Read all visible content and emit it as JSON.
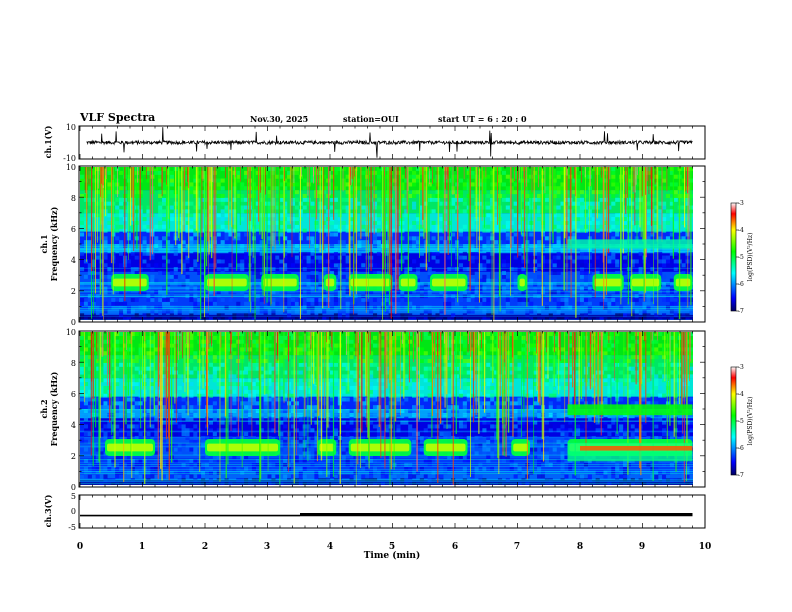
{
  "header": {
    "title": "VLF Spectra",
    "date": "Nov.30, 2025",
    "station": "station=OUI",
    "start_ut": "start  UT  =   6  : 20 : 0"
  },
  "chart_data": [
    {
      "type": "line",
      "panel": "ch1-waveform",
      "ylabel": "ch.1(V)",
      "ylim": [
        -10,
        10
      ],
      "yticks": [
        "10",
        "-10"
      ],
      "xlim": [
        0,
        10
      ],
      "baseline": 0,
      "notes": "noisy waveform near 0 V with occasional spikes"
    },
    {
      "type": "heatmap",
      "panel": "ch1-spectrogram",
      "ylabel_line1": "ch.1",
      "ylabel_line2": "Frequency  (kHz)",
      "ylim": [
        0,
        10
      ],
      "yticks": [
        "0",
        "2",
        "4",
        "6",
        "8",
        "10"
      ],
      "xlim": [
        0,
        10
      ],
      "band_center_khz": 2.5,
      "band_segments_min": [
        [
          0.5,
          1.1
        ],
        [
          2.0,
          2.7
        ],
        [
          2.9,
          3.5
        ],
        [
          3.9,
          4.1
        ],
        [
          4.3,
          5.0
        ],
        [
          5.1,
          5.4
        ],
        [
          5.6,
          6.2
        ],
        [
          7.0,
          7.15
        ],
        [
          8.2,
          8.7
        ],
        [
          8.8,
          9.3
        ],
        [
          9.5,
          9.8
        ]
      ],
      "colorbar": {
        "label": "log(PSD)(V²/Hz)",
        "range": [
          -7,
          -3
        ],
        "ticks": [
          "-3",
          "-4",
          "-5",
          "-6",
          "-7"
        ]
      }
    },
    {
      "type": "heatmap",
      "panel": "ch2-spectrogram",
      "ylabel_line1": "ch.2",
      "ylabel_line2": "Frequency  (kHz)",
      "ylim": [
        0,
        10
      ],
      "yticks": [
        "0",
        "2",
        "4",
        "6",
        "8",
        "10"
      ],
      "xlim": [
        0,
        10
      ],
      "band_center_khz": 2.5,
      "band_segments_min": [
        [
          0.4,
          1.2
        ],
        [
          2.0,
          3.2
        ],
        [
          3.8,
          4.1
        ],
        [
          4.3,
          5.3
        ],
        [
          5.5,
          6.2
        ],
        [
          6.9,
          7.2
        ],
        [
          7.8,
          9.8
        ]
      ],
      "colorbar": {
        "label": "log(PSD)(V²/Hz)",
        "range": [
          -7,
          -3
        ],
        "ticks": [
          "-3",
          "-4",
          "-5",
          "-6",
          "-7"
        ]
      }
    },
    {
      "type": "line",
      "panel": "ch3-level",
      "ylabel": "ch.3(V)",
      "ylim": [
        -5,
        5
      ],
      "yticks": [
        "5",
        "0",
        "-5"
      ],
      "xlim": [
        0,
        10
      ],
      "xlabel": "Time  (min)",
      "xticks": [
        "0",
        "1",
        "2",
        "3",
        "4",
        "5",
        "6",
        "7",
        "8",
        "9",
        "10"
      ],
      "x": [
        0,
        3.52,
        3.52,
        9.8
      ],
      "y": [
        -1.3,
        -1.3,
        -1.0,
        -1.0
      ]
    }
  ]
}
